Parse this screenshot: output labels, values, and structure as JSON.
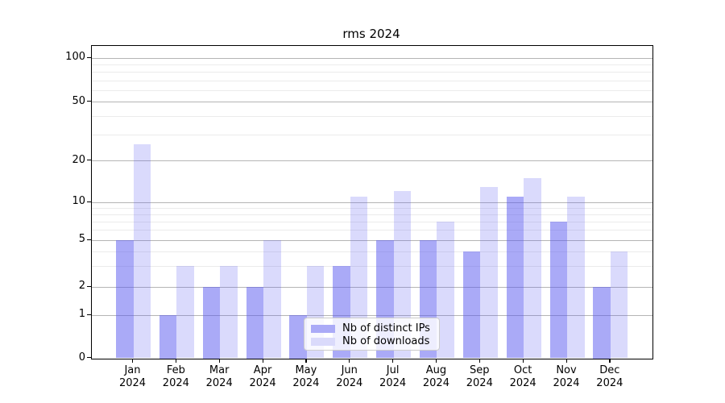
{
  "chart_title": "rms 2024",
  "legend": {
    "items": [
      {
        "label": "Nb of distinct IPs",
        "swatch_color": "#aaaaf7"
      },
      {
        "label": "Nb of downloads",
        "swatch_color": "#dadafb"
      }
    ]
  },
  "y_axis": {
    "tick_labels": [
      "100",
      "50",
      "20",
      "10",
      "5",
      "2",
      "1",
      "0"
    ],
    "tick_values": [
      100,
      50,
      20,
      10,
      5,
      2,
      1,
      0
    ]
  },
  "x_axis": {
    "categories": [
      {
        "month": "Jan",
        "year": "2024"
      },
      {
        "month": "Feb",
        "year": "2024"
      },
      {
        "month": "Mar",
        "year": "2024"
      },
      {
        "month": "Apr",
        "year": "2024"
      },
      {
        "month": "May",
        "year": "2024"
      },
      {
        "month": "Jun",
        "year": "2024"
      },
      {
        "month": "Jul",
        "year": "2024"
      },
      {
        "month": "Aug",
        "year": "2024"
      },
      {
        "month": "Sep",
        "year": "2024"
      },
      {
        "month": "Oct",
        "year": "2024"
      },
      {
        "month": "Nov",
        "year": "2024"
      },
      {
        "month": "Dec",
        "year": "2024"
      }
    ]
  },
  "chart_data": {
    "type": "bar",
    "title": "rms 2024",
    "categories": [
      "Jan 2024",
      "Feb 2024",
      "Mar 2024",
      "Apr 2024",
      "May 2024",
      "Jun 2024",
      "Jul 2024",
      "Aug 2024",
      "Sep 2024",
      "Oct 2024",
      "Nov 2024",
      "Dec 2024"
    ],
    "series": [
      {
        "name": "Nb of distinct IPs",
        "color": "rgba(85,85,240,0.5)",
        "values": [
          5,
          1,
          2,
          2,
          1,
          3,
          5,
          5,
          4,
          11,
          7,
          2
        ]
      },
      {
        "name": "Nb of downloads",
        "color": "rgba(85,85,240,0.22)",
        "values": [
          26,
          3,
          3,
          5,
          3,
          11,
          12,
          7,
          13,
          15,
          11,
          4
        ]
      }
    ],
    "xlabel": "",
    "ylabel": "",
    "yscale": "log-like (0,1,2,5,10,20,50,100)",
    "yticks": [
      0,
      1,
      2,
      5,
      10,
      20,
      50,
      100
    ],
    "ylim": [
      0,
      100
    ],
    "grid": true,
    "grid_on_top_look": "gridlines visible through translucent bars",
    "legend_position": "lower center"
  },
  "colors": {
    "bar_distinct_ips": "#aaaaf7",
    "bar_downloads": "#dadafb",
    "major_grid": "#8c8c8c",
    "minor_grid": "#e8e8e8",
    "axis": "#000000",
    "background": "#ffffff"
  }
}
